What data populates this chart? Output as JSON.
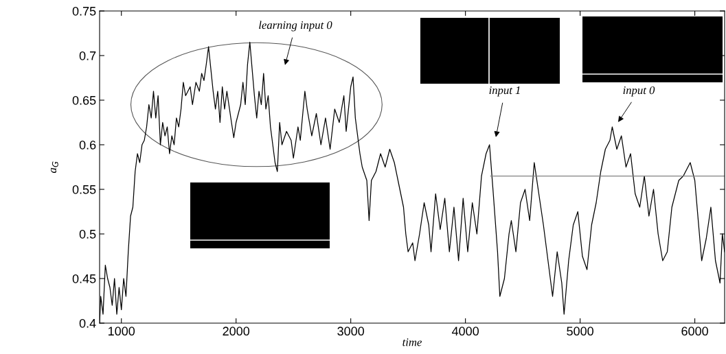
{
  "chart_data": {
    "type": "line",
    "xlabel": "time",
    "ylabel": "a$_{G}$",
    "xlim": [
      810,
      6260
    ],
    "ylim": [
      0.4,
      0.75
    ],
    "xticks": [
      1000,
      2000,
      3000,
      4000,
      5000,
      6000
    ],
    "yticks": [
      0.4,
      0.45,
      0.5,
      0.55,
      0.6,
      0.65,
      0.7,
      0.75
    ],
    "grid": false,
    "legend": false,
    "marker": "none",
    "line_style": "solid",
    "series": [
      {
        "color": "#000000",
        "x": [
          810,
          820,
          840,
          860,
          880,
          900,
          920,
          940,
          960,
          980,
          1000,
          1020,
          1040,
          1060,
          1080,
          1100,
          1120,
          1140,
          1160,
          1180,
          1200,
          1220,
          1240,
          1260,
          1280,
          1300,
          1320,
          1340,
          1360,
          1380,
          1400,
          1420,
          1440,
          1460,
          1480,
          1500,
          1520,
          1540,
          1560,
          1600,
          1620,
          1650,
          1680,
          1700,
          1720,
          1740,
          1760,
          1780,
          1800,
          1820,
          1840,
          1860,
          1880,
          1900,
          1920,
          1960,
          1980,
          2000,
          2040,
          2060,
          2080,
          2100,
          2120,
          2140,
          2160,
          2180,
          2200,
          2220,
          2240,
          2260,
          2280,
          2300,
          2340,
          2360,
          2380,
          2400,
          2440,
          2480,
          2500,
          2540,
          2560,
          2600,
          2620,
          2660,
          2700,
          2740,
          2780,
          2820,
          2860,
          2900,
          2940,
          2960,
          3000,
          3020,
          3040,
          3080,
          3100,
          3140,
          3160,
          3180,
          3220,
          3260,
          3300,
          3340,
          3380,
          3420,
          3460,
          3480,
          3500,
          3540,
          3560,
          3600,
          3640,
          3680,
          3700,
          3740,
          3780,
          3820,
          3860,
          3900,
          3940,
          3980,
          4020,
          4060,
          4100,
          4140,
          4180,
          4210,
          4240,
          4280,
          4300,
          4340,
          4380,
          4400,
          4440,
          4480,
          4520,
          4560,
          4600,
          4640,
          4680,
          4720,
          4760,
          4800,
          4840,
          4860,
          4900,
          4940,
          4980,
          5020,
          5060,
          5100,
          5140,
          5180,
          5220,
          5260,
          5280,
          5320,
          5360,
          5400,
          5440,
          5480,
          5520,
          5560,
          5600,
          5640,
          5680,
          5720,
          5760,
          5800,
          5860,
          5900,
          5960,
          6000,
          6060,
          6100,
          6140,
          6180,
          6220,
          6240,
          6260
        ],
        "values": [
          0.4,
          0.43,
          0.41,
          0.465,
          0.45,
          0.44,
          0.42,
          0.45,
          0.41,
          0.44,
          0.415,
          0.45,
          0.43,
          0.48,
          0.52,
          0.53,
          0.57,
          0.59,
          0.58,
          0.6,
          0.605,
          0.62,
          0.645,
          0.63,
          0.66,
          0.63,
          0.655,
          0.6,
          0.625,
          0.61,
          0.62,
          0.59,
          0.61,
          0.6,
          0.63,
          0.62,
          0.64,
          0.67,
          0.655,
          0.665,
          0.645,
          0.67,
          0.66,
          0.68,
          0.672,
          0.69,
          0.71,
          0.685,
          0.66,
          0.64,
          0.66,
          0.625,
          0.665,
          0.64,
          0.66,
          0.625,
          0.608,
          0.625,
          0.645,
          0.67,
          0.645,
          0.69,
          0.715,
          0.685,
          0.655,
          0.63,
          0.66,
          0.645,
          0.68,
          0.64,
          0.655,
          0.62,
          0.58,
          0.57,
          0.625,
          0.6,
          0.615,
          0.605,
          0.585,
          0.62,
          0.605,
          0.66,
          0.64,
          0.61,
          0.635,
          0.6,
          0.63,
          0.595,
          0.64,
          0.625,
          0.655,
          0.615,
          0.665,
          0.676,
          0.63,
          0.59,
          0.575,
          0.56,
          0.515,
          0.56,
          0.57,
          0.59,
          0.575,
          0.595,
          0.58,
          0.555,
          0.53,
          0.5,
          0.48,
          0.49,
          0.47,
          0.5,
          0.535,
          0.51,
          0.48,
          0.545,
          0.505,
          0.54,
          0.48,
          0.53,
          0.47,
          0.54,
          0.48,
          0.535,
          0.5,
          0.565,
          0.59,
          0.6,
          0.55,
          0.48,
          0.43,
          0.45,
          0.5,
          0.515,
          0.48,
          0.535,
          0.55,
          0.515,
          0.58,
          0.545,
          0.51,
          0.47,
          0.43,
          0.48,
          0.445,
          0.41,
          0.47,
          0.51,
          0.525,
          0.475,
          0.46,
          0.51,
          0.535,
          0.57,
          0.595,
          0.605,
          0.62,
          0.595,
          0.61,
          0.575,
          0.59,
          0.545,
          0.53,
          0.565,
          0.52,
          0.55,
          0.5,
          0.47,
          0.48,
          0.53,
          0.56,
          0.565,
          0.58,
          0.56,
          0.47,
          0.495,
          0.53,
          0.47,
          0.445,
          0.5,
          0.48
        ]
      },
      {
        "color": "#808080",
        "x": [
          4220,
          6260
        ],
        "values": [
          0.565,
          0.565
        ]
      }
    ],
    "annotations": [
      "learning input 0",
      "input 1",
      "input 0"
    ]
  }
}
